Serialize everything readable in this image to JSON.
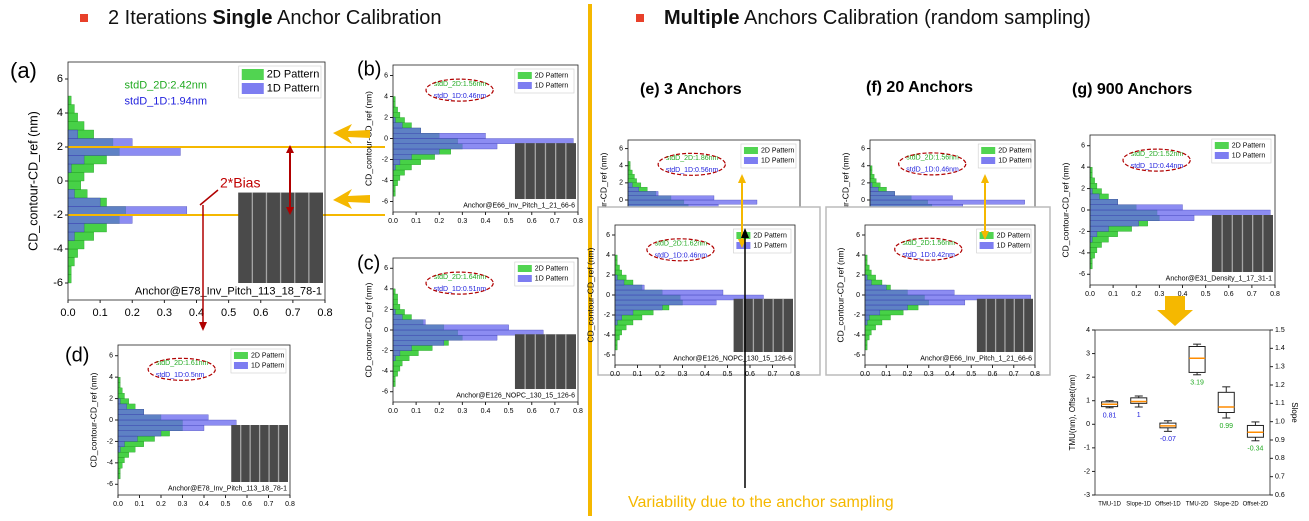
{
  "left_heading": {
    "pre": "2 Iterations ",
    "bold": "Single",
    "post": " Anchor Calibration"
  },
  "right_heading": {
    "bold": "Multiple",
    "post": " Anchors Calibration (random sampling)"
  },
  "bias_label": "2*Bias",
  "variability_note": "Variability due to the anchor sampling",
  "panel_titles": [
    "(e) 3 Anchors",
    "(f) 20 Anchors",
    "(g) 900 Anchors"
  ],
  "chart_data": [
    {
      "type": "histogram",
      "panel_label": "(a)",
      "ylabel": "CD_contour-CD_ref (nm)",
      "bins": [
        -6,
        -5.5,
        -5,
        -4.5,
        -4,
        -3.5,
        -3,
        -2.5,
        -2,
        -1.5,
        -1,
        -0.5,
        0,
        0.5,
        1,
        1.5,
        2,
        2.5,
        3,
        3.5,
        4,
        4.5,
        5
      ],
      "series": [
        {
          "name": "2D Pattern",
          "color": "#33cc33",
          "values": [
            0.01,
            0.01,
            0.02,
            0.03,
            0.05,
            0.08,
            0.12,
            0.16,
            0.18,
            0.12,
            0.06,
            0.04,
            0.05,
            0.08,
            0.12,
            0.16,
            0.14,
            0.08,
            0.05,
            0.03,
            0.02,
            0.01
          ]
        },
        {
          "name": "1D Pattern",
          "color": "#6666ee",
          "values": [
            0,
            0,
            0,
            0,
            0,
            0.02,
            0.05,
            0.2,
            0.37,
            0.1,
            0.02,
            0,
            0,
            0.01,
            0.05,
            0.35,
            0.2,
            0.03,
            0,
            0,
            0,
            0
          ]
        }
      ],
      "xlim": [
        0,
        0.8
      ],
      "xticks": [
        {
          "value": 0,
          "label": "0.0"
        },
        0.1,
        0.2,
        0.3,
        0.4,
        0.5,
        0.6,
        0.7,
        0.8
      ],
      "ylim": [
        -7,
        7
      ],
      "yticks": [
        -6,
        -4,
        -2,
        0,
        2,
        4,
        6
      ],
      "bias_lines": [
        2,
        -2
      ],
      "annotations": [
        "stdD_2D:2.42nm",
        "stdD_1D:1.94nm"
      ],
      "source": "Anchor@E78_Inv_Pitch_113_18_78-1"
    },
    {
      "type": "histogram",
      "panel_label": "(b)",
      "ylabel": "CD_contour-CD_ref (nm)",
      "bins": [
        -6,
        -5.5,
        -5,
        -4.5,
        -4,
        -3.5,
        -3,
        -2.5,
        -2,
        -1.5,
        -1,
        -0.5,
        0,
        0.5,
        1,
        1.5,
        2,
        2.5,
        3,
        3.5,
        4,
        4.5,
        5
      ],
      "series": [
        {
          "name": "2D Pattern",
          "color": "#33cc33",
          "values": [
            0,
            0.01,
            0.01,
            0.02,
            0.03,
            0.05,
            0.08,
            0.12,
            0.18,
            0.25,
            0.3,
            0.28,
            0.2,
            0.12,
            0.08,
            0.05,
            0.03,
            0.02,
            0.01,
            0.01,
            0,
            0
          ]
        },
        {
          "name": "1D Pattern",
          "color": "#6666ee",
          "values": [
            0,
            0,
            0,
            0,
            0,
            0,
            0.01,
            0.03,
            0.08,
            0.2,
            0.45,
            0.78,
            0.4,
            0.12,
            0.04,
            0.01,
            0,
            0,
            0,
            0,
            0,
            0
          ]
        }
      ],
      "xlim": [
        0,
        0.8
      ],
      "xticks": [
        {
          "value": 0,
          "label": "0.0"
        },
        0.1,
        0.2,
        0.3,
        0.4,
        0.5,
        0.6,
        0.7,
        0.8
      ],
      "ylim": [
        -7,
        7
      ],
      "yticks": [
        -6,
        -4,
        -2,
        0,
        2,
        4,
        6
      ],
      "annotations": [
        "stdD_2D:1.56nm",
        "stdD_1D:0.46nm"
      ],
      "source": "Anchor@E66_Inv_Pitch_1_21_66-6"
    },
    {
      "type": "histogram",
      "panel_label": "(c)",
      "ylabel": "CD_contour-CD_ref (nm)",
      "bins": [
        -6,
        -5.5,
        -5,
        -4.5,
        -4,
        -3.5,
        -3,
        -2.5,
        -2,
        -1.5,
        -1,
        -0.5,
        0,
        0.5,
        1,
        1.5,
        2,
        2.5,
        3,
        3.5,
        4,
        4.5,
        5
      ],
      "series": [
        {
          "name": "2D Pattern",
          "color": "#33cc33",
          "values": [
            0,
            0.01,
            0.01,
            0.02,
            0.03,
            0.04,
            0.07,
            0.11,
            0.17,
            0.24,
            0.3,
            0.28,
            0.22,
            0.13,
            0.08,
            0.05,
            0.03,
            0.02,
            0.02,
            0.01,
            0,
            0
          ]
        },
        {
          "name": "1D Pattern",
          "color": "#6666ee",
          "values": [
            0,
            0,
            0,
            0,
            0,
            0,
            0.01,
            0.03,
            0.08,
            0.22,
            0.45,
            0.65,
            0.5,
            0.14,
            0.04,
            0.01,
            0,
            0,
            0,
            0,
            0,
            0
          ]
        }
      ],
      "xlim": [
        0,
        0.8
      ],
      "xticks": [
        {
          "value": 0,
          "label": "0.0"
        },
        0.1,
        0.2,
        0.3,
        0.4,
        0.5,
        0.6,
        0.7,
        0.8
      ],
      "ylim": [
        -7,
        7
      ],
      "yticks": [
        -6,
        -4,
        -2,
        0,
        2,
        4,
        6
      ],
      "annotations": [
        "stdD_2D:1.64nm",
        "stdD_1D:0.51nm"
      ],
      "source": "Anchor@E126_NOPC_130_15_126-6"
    },
    {
      "type": "histogram",
      "panel_label": "(d)",
      "ylabel": "CD_contour-CD_ref (nm)",
      "bins": [
        -6,
        -5.5,
        -5,
        -4.5,
        -4,
        -3.5,
        -3,
        -2.5,
        -2,
        -1.5,
        -1,
        -0.5,
        0,
        0.5,
        1,
        1.5,
        2,
        2.5,
        3,
        3.5,
        4,
        4.5,
        5
      ],
      "series": [
        {
          "name": "2D Pattern",
          "color": "#33cc33",
          "values": [
            0,
            0.01,
            0.01,
            0.02,
            0.03,
            0.05,
            0.08,
            0.12,
            0.17,
            0.24,
            0.3,
            0.3,
            0.2,
            0.12,
            0.08,
            0.05,
            0.03,
            0.02,
            0.01,
            0.01,
            0,
            0
          ]
        },
        {
          "name": "1D Pattern",
          "color": "#6666ee",
          "values": [
            0,
            0,
            0,
            0,
            0,
            0,
            0.01,
            0.03,
            0.09,
            0.2,
            0.4,
            0.55,
            0.42,
            0.12,
            0.04,
            0.01,
            0,
            0,
            0,
            0,
            0,
            0
          ]
        }
      ],
      "xlim": [
        0,
        0.8
      ],
      "xticks": [
        {
          "value": 0,
          "label": "0.0"
        },
        0.1,
        0.2,
        0.3,
        0.4,
        0.5,
        0.6,
        0.7,
        0.8
      ],
      "ylim": [
        -7,
        7
      ],
      "yticks": [
        -6,
        -4,
        -2,
        0,
        2,
        4,
        6
      ],
      "annotations": [
        "stdD_2D:1.61nm",
        "stdD_1D:0.5nm"
      ],
      "source": "Anchor@E78_Inv_Pitch_113_18_78-1"
    },
    {
      "type": "histogram",
      "ylabel": "CD_contour-CD_ref (nm)",
      "bins": [
        -6,
        -5.5,
        -5,
        -4.5,
        -4,
        -3.5,
        -3,
        -2.5,
        -2,
        -1.5,
        -1,
        -0.5,
        0,
        0.5,
        1,
        1.5,
        2,
        2.5,
        3,
        3.5,
        4,
        4.5,
        5
      ],
      "series": [
        {
          "name": "2D Pattern",
          "color": "#33cc33",
          "values": [
            0,
            0.01,
            0.02,
            0.02,
            0.04,
            0.06,
            0.09,
            0.13,
            0.18,
            0.24,
            0.28,
            0.26,
            0.2,
            0.13,
            0.09,
            0.06,
            0.04,
            0.03,
            0.02,
            0.01,
            0.01,
            0
          ]
        },
        {
          "name": "1D Pattern",
          "color": "#6666ee",
          "values": [
            0,
            0,
            0,
            0,
            0,
            0,
            0.01,
            0.04,
            0.1,
            0.22,
            0.42,
            0.6,
            0.4,
            0.14,
            0.05,
            0.02,
            0,
            0,
            0,
            0,
            0,
            0
          ]
        }
      ],
      "xlim": [
        0,
        0.8
      ],
      "ylim": [
        -7,
        7
      ],
      "yticks": [
        -6,
        -4,
        -2,
        0,
        2,
        4,
        6
      ],
      "annotations": [
        "stdD_2D:1.86nm",
        "stdD_1D:0.56nm"
      ]
    },
    {
      "type": "histogram",
      "ylabel": "CD_contour-CD_ref (nm)",
      "bins": [
        -6,
        -5.5,
        -5,
        -4.5,
        -4,
        -3.5,
        -3,
        -2.5,
        -2,
        -1.5,
        -1,
        -0.5,
        0,
        0.5,
        1,
        1.5,
        2,
        2.5,
        3,
        3.5,
        4,
        4.5,
        5
      ],
      "series": [
        {
          "name": "2D Pattern",
          "color": "#33cc33",
          "values": [
            0,
            0.01,
            0.01,
            0.02,
            0.03,
            0.05,
            0.08,
            0.12,
            0.17,
            0.24,
            0.3,
            0.29,
            0.21,
            0.12,
            0.08,
            0.05,
            0.03,
            0.02,
            0.01,
            0.01,
            0,
            0
          ]
        },
        {
          "name": "1D Pattern",
          "color": "#6666ee",
          "values": [
            0,
            0,
            0,
            0,
            0,
            0,
            0.01,
            0.03,
            0.08,
            0.21,
            0.45,
            0.66,
            0.48,
            0.13,
            0.04,
            0.01,
            0,
            0,
            0,
            0,
            0,
            0
          ]
        }
      ],
      "xlim": [
        0,
        0.8
      ],
      "xticks": [
        {
          "value": 0,
          "label": "0.0"
        },
        0.1,
        0.2,
        0.3,
        0.4,
        0.5,
        0.6,
        0.7,
        0.8
      ],
      "ylim": [
        -7,
        7
      ],
      "yticks": [
        -6,
        -4,
        -2,
        0,
        2,
        4,
        6
      ],
      "annotations": [
        "stdD_2D:1.62nm",
        "stdD_1D:0.46nm"
      ],
      "source": "Anchor@E126_NOPC_130_15_126-6"
    },
    {
      "type": "histogram",
      "ylabel": "CD_contour-CD_ref (nm)",
      "bins": [
        -6,
        -5.5,
        -5,
        -4.5,
        -4,
        -3.5,
        -3,
        -2.5,
        -2,
        -1.5,
        -1,
        -0.5,
        0,
        0.5,
        1,
        1.5,
        2,
        2.5,
        3,
        3.5,
        4,
        4.5,
        5
      ],
      "series": [
        {
          "name": "2D Pattern",
          "color": "#33cc33",
          "values": [
            0,
            0.01,
            0.01,
            0.02,
            0.03,
            0.05,
            0.08,
            0.12,
            0.18,
            0.25,
            0.3,
            0.28,
            0.2,
            0.12,
            0.08,
            0.05,
            0.03,
            0.02,
            0.01,
            0.01,
            0,
            0
          ]
        },
        {
          "name": "1D Pattern",
          "color": "#6666ee",
          "values": [
            0,
            0,
            0,
            0,
            0,
            0,
            0.01,
            0.03,
            0.08,
            0.2,
            0.45,
            0.75,
            0.4,
            0.12,
            0.04,
            0.01,
            0,
            0,
            0,
            0,
            0,
            0
          ]
        }
      ],
      "xlim": [
        0,
        0.8
      ],
      "ylim": [
        -7,
        7
      ],
      "yticks": [
        -6,
        -4,
        -2,
        0,
        2,
        4,
        6
      ],
      "annotations": [
        "stdD_2D:1.56nm",
        "stdD_1D:0.46nm"
      ]
    },
    {
      "type": "histogram",
      "ylabel": "CD_contour-CD_ref (nm)",
      "bins": [
        -6,
        -5.5,
        -5,
        -4.5,
        -4,
        -3.5,
        -3,
        -2.5,
        -2,
        -1.5,
        -1,
        -0.5,
        0,
        0.5,
        1,
        1.5,
        2,
        2.5,
        3,
        3.5,
        4,
        4.5,
        5
      ],
      "series": [
        {
          "name": "2D Pattern",
          "color": "#33cc33",
          "values": [
            0,
            0.01,
            0.01,
            0.02,
            0.03,
            0.05,
            0.08,
            0.12,
            0.18,
            0.25,
            0.3,
            0.28,
            0.2,
            0.12,
            0.08,
            0.05,
            0.03,
            0.02,
            0.01,
            0.01,
            0,
            0
          ]
        },
        {
          "name": "1D Pattern",
          "color": "#6666ee",
          "values": [
            0,
            0,
            0,
            0,
            0,
            0,
            0.01,
            0.02,
            0.07,
            0.2,
            0.47,
            0.78,
            0.42,
            0.1,
            0.03,
            0.01,
            0,
            0,
            0,
            0,
            0,
            0
          ]
        }
      ],
      "xlim": [
        0,
        0.8
      ],
      "xticks": [
        {
          "value": 0,
          "label": "0.0"
        },
        0.1,
        0.2,
        0.3,
        0.4,
        0.5,
        0.6,
        0.7,
        0.8
      ],
      "ylim": [
        -7,
        7
      ],
      "yticks": [
        -6,
        -4,
        -2,
        0,
        2,
        4,
        6
      ],
      "annotations": [
        "stdD_2D:1.56nm",
        "stdD_1D:0.42nm"
      ],
      "source": "Anchor@E66_Inv_Pitch_1_21_66-6"
    },
    {
      "type": "histogram",
      "ylabel": "CD_contour-CD_ref (nm)",
      "bins": [
        -6,
        -5.5,
        -5,
        -4.5,
        -4,
        -3.5,
        -3,
        -2.5,
        -2,
        -1.5,
        -1,
        -0.5,
        0,
        0.5,
        1,
        1.5,
        2,
        2.5,
        3,
        3.5,
        4,
        4.5,
        5
      ],
      "series": [
        {
          "name": "2D Pattern",
          "color": "#33cc33",
          "values": [
            0,
            0.01,
            0.01,
            0.02,
            0.03,
            0.05,
            0.08,
            0.12,
            0.18,
            0.25,
            0.3,
            0.29,
            0.2,
            0.12,
            0.08,
            0.05,
            0.03,
            0.02,
            0.01,
            0.01,
            0,
            0
          ]
        },
        {
          "name": "1D Pattern",
          "color": "#6666ee",
          "values": [
            0,
            0,
            0,
            0,
            0,
            0,
            0.01,
            0.03,
            0.08,
            0.21,
            0.45,
            0.78,
            0.4,
            0.12,
            0.04,
            0.01,
            0,
            0,
            0,
            0,
            0,
            0
          ]
        }
      ],
      "xlim": [
        0,
        0.8
      ],
      "xticks": [
        {
          "value": 0,
          "label": "0.0"
        },
        0.1,
        0.2,
        0.3,
        0.4,
        0.5,
        0.6,
        0.7,
        0.8
      ],
      "ylim": [
        -7,
        7
      ],
      "yticks": [
        -6,
        -4,
        -2,
        0,
        2,
        4,
        6
      ],
      "annotations": [
        "stdD_2D:1.52nm",
        "stdD_1D:0.44nm"
      ],
      "source": "Anchor@E31_Density_1_17_31-1"
    },
    {
      "type": "box",
      "ylabel": "TMU(nm), Offset(nm)",
      "y2label": "Slope",
      "categories": [
        "TMU-1D",
        "Slope-1D",
        "Offset-1D",
        "TMU-2D",
        "Slope-2D",
        "Offset-2D"
      ],
      "boxes": [
        {
          "low": 0.7,
          "q1": 0.75,
          "med": 0.85,
          "q3": 0.95,
          "high": 1.0
        },
        {
          "low": 1.08,
          "q1": 1.1,
          "med": 1.11,
          "q3": 1.13,
          "high": 1.14,
          "axis": "y2"
        },
        {
          "low": -0.3,
          "q1": -0.15,
          "med": -0.07,
          "q3": 0.05,
          "high": 0.15
        },
        {
          "low": 2.1,
          "q1": 2.2,
          "med": 2.8,
          "q3": 3.3,
          "high": 3.4
        },
        {
          "low": 1.02,
          "q1": 1.05,
          "med": 1.08,
          "q3": 1.16,
          "high": 1.19,
          "axis": "y2"
        },
        {
          "low": -0.7,
          "q1": -0.55,
          "med": -0.34,
          "q3": -0.05,
          "high": 0.1
        }
      ],
      "labels": [
        0.81,
        1,
        -0.07,
        3.19,
        0.99,
        -0.34
      ],
      "label_colors": [
        "#2222dd",
        "#2222dd",
        "#2222dd",
        "#22aa22",
        "#22aa22",
        "#22aa22"
      ],
      "ylim": [
        -3,
        4
      ],
      "yticks": [
        -3,
        -2,
        -1,
        0,
        1,
        2,
        3,
        4
      ],
      "y2lim": [
        0.6,
        1.5
      ],
      "y2ticks": [
        0.6,
        0.7,
        0.8,
        0.9,
        {
          "value": 1,
          "label": "1.0"
        },
        1.1,
        1.2,
        1.3,
        1.4,
        1.5
      ]
    }
  ]
}
